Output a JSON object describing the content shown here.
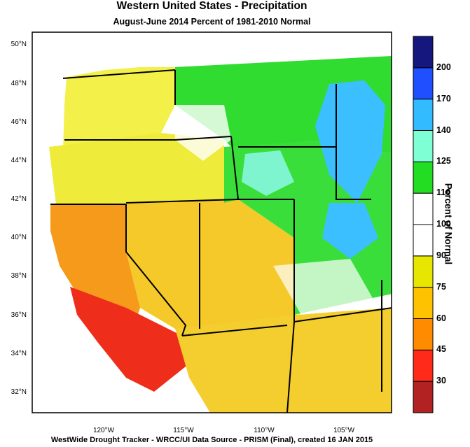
{
  "title": "Western United States - Precipitation",
  "subtitle": "August-June 2014  Percent of 1981-2010 Normal",
  "footer": "WestWide Drought Tracker - WRCC/UI  Data Source - PRISM (Final), created 16 JAN 2015",
  "legend": {
    "title": "Percent of Normal",
    "labels": [
      "30",
      "45",
      "60",
      "75",
      "90",
      "100",
      "110",
      "125",
      "140",
      "170",
      "200"
    ],
    "colors": [
      "#b22222",
      "#ff2a1a",
      "#ff8c00",
      "#ffc200",
      "#e6e600",
      "#ffffff",
      "#ffffff",
      "#22dd22",
      "#7fffd4",
      "#33bbff",
      "#1f4fff",
      "#16167f"
    ]
  },
  "axes": {
    "lat_labels": [
      "50°N",
      "48°N",
      "46°N",
      "44°N",
      "42°N",
      "40°N",
      "38°N",
      "36°N",
      "34°N",
      "32°N"
    ],
    "lon_labels": [
      "120°W",
      "115°W",
      "110°W",
      "105°W"
    ]
  }
}
